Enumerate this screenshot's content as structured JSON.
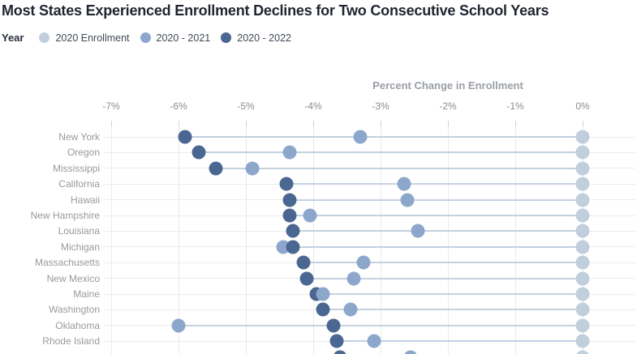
{
  "title": "Most States Experienced Enrollment Declines for Two Consecutive School Years",
  "legend": {
    "title": "Year"
  },
  "axis": {
    "title": "Percent Change in Enrollment",
    "tick_labels": [
      "-7%",
      "-6%",
      "-5%",
      "-4%",
      "-3%",
      "-2%",
      "-1%",
      "0%"
    ]
  },
  "colors": {
    "series_2020_enrollment": "#c1cfdd",
    "series_2020_2021": "#8da7cc",
    "series_2020_2022": "#4a6791",
    "connector_line": "#c3d1e1",
    "row_guide_line": "#ececec",
    "gridline": "#e9eaeb",
    "title_text": "#1f2531",
    "axis_text": "#9a9ea3",
    "tick_text": "#888d91",
    "row_label_text": "#969a9e"
  },
  "chart_data": {
    "type": "scatter",
    "subtype": "dumbbell-dot-plot",
    "title": "Most States Experienced Enrollment Declines for Two Consecutive School Years",
    "xlabel": "Percent Change in Enrollment",
    "x_ticks_percent": [
      -7,
      -6,
      -5,
      -4,
      -3,
      -2,
      -1,
      0
    ],
    "xlim_percent": [
      -7.1,
      0.8
    ],
    "grid": "vertical gridlines at each tick; faint horizontal guide line per row",
    "legend_position": "top-left",
    "categories": [
      "New York",
      "Oregon",
      "Mississippi",
      "California",
      "Hawaii",
      "New Hampshire",
      "Louisiana",
      "Michigan",
      "Massachusetts",
      "New Mexico",
      "Maine",
      "Washington",
      "Oklahoma",
      "Rhode Island",
      ""
    ],
    "partial_bottom_row": "fifteenth row is cut off at the bottom edge; its label is not visible",
    "series": [
      {
        "name": "2020 Enrollment",
        "color": "#c1cfdd",
        "values": [
          0,
          0,
          0,
          0,
          0,
          0,
          0,
          0,
          0,
          0,
          0,
          0,
          0,
          0,
          0
        ]
      },
      {
        "name": "2020 - 2021",
        "color": "#8da7cc",
        "values": [
          -3.3,
          -4.35,
          -4.9,
          -2.65,
          -2.6,
          -4.05,
          -2.45,
          -4.45,
          -3.25,
          -3.4,
          -3.85,
          -3.45,
          -6.0,
          -3.1,
          -2.55
        ]
      },
      {
        "name": "2020 - 2022",
        "color": "#4a6791",
        "values": [
          -5.9,
          -5.7,
          -5.45,
          -4.4,
          -4.35,
          -4.35,
          -4.3,
          -4.3,
          -4.15,
          -4.1,
          -3.95,
          -3.85,
          -3.7,
          -3.65,
          -3.6
        ]
      }
    ]
  }
}
